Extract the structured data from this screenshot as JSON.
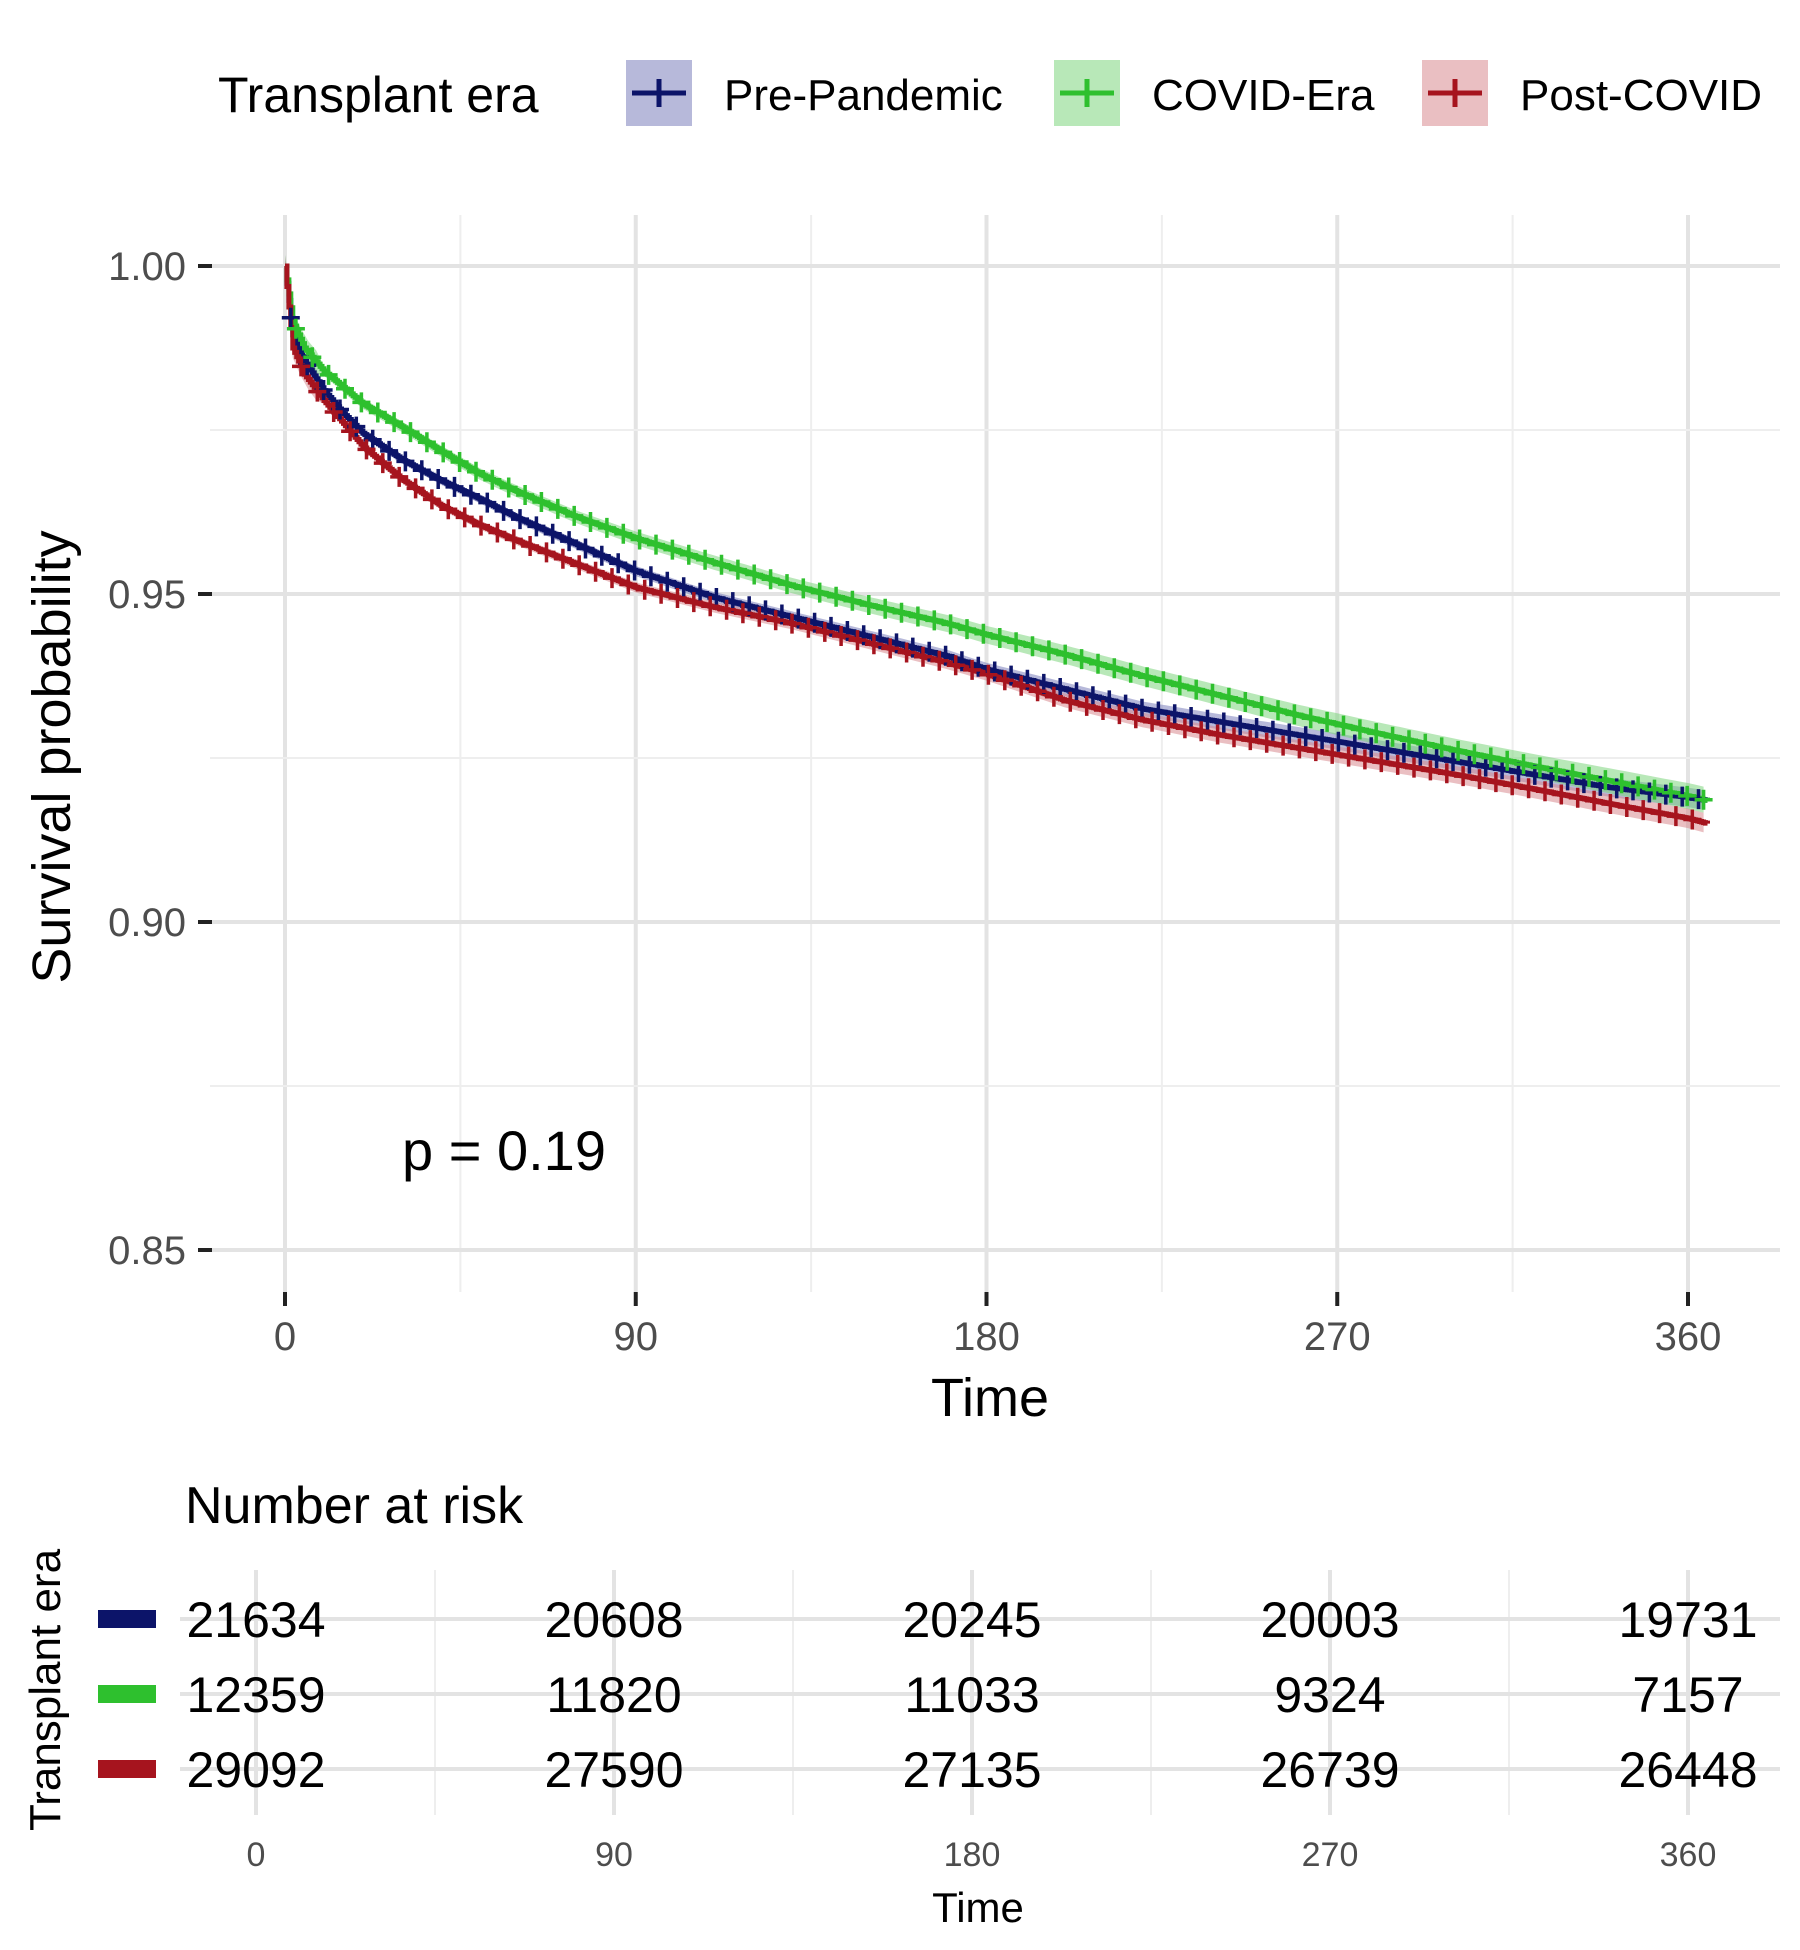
{
  "chart_data": [
    {
      "type": "line",
      "subtype": "kaplan-meier",
      "title": "",
      "xlabel": "Time",
      "ylabel": "Survival probability",
      "xlim": [
        0,
        380
      ],
      "ylim": [
        0.843,
        1.008
      ],
      "x_ticks": [
        0,
        90,
        180,
        270,
        360
      ],
      "x_tick_labels": [
        "0",
        "90",
        "180",
        "270",
        "360"
      ],
      "y_ticks": [
        0.85,
        0.9,
        0.95,
        1.0
      ],
      "y_tick_labels": [
        "0.85",
        "0.90",
        "0.95",
        "1.00"
      ],
      "grid": true,
      "legend": {
        "title": "Transplant era",
        "position": "top"
      },
      "annotation": "p = 0.19",
      "series": [
        {
          "name": "Pre-Pandemic",
          "color": "#0c1469",
          "band_color": "#7b80bb",
          "x": [
            0,
            2,
            5,
            10,
            15,
            20,
            30,
            40,
            50,
            60,
            75,
            90,
            110,
            130,
            150,
            170,
            180,
            200,
            220,
            240,
            260,
            280,
            300,
            320,
            340,
            360,
            365
          ],
          "y": [
            1.0,
            0.9895,
            0.9855,
            0.981,
            0.9775,
            0.9745,
            0.9705,
            0.9673,
            0.9645,
            0.9615,
            0.9575,
            0.9535,
            0.9495,
            0.9465,
            0.9435,
            0.9405,
            0.9385,
            0.9355,
            0.9325,
            0.9305,
            0.9285,
            0.9265,
            0.9245,
            0.9225,
            0.9205,
            0.919,
            0.9185
          ],
          "ci_halfwidth": 0.0015
        },
        {
          "name": "COVID-Era",
          "color": "#2ec02e",
          "band_color": "#7ed67e",
          "x": [
            0,
            2,
            5,
            10,
            15,
            20,
            30,
            40,
            50,
            60,
            75,
            90,
            110,
            130,
            150,
            170,
            180,
            200,
            220,
            240,
            260,
            280,
            300,
            320,
            340,
            360,
            365
          ],
          "y": [
            1.0,
            0.9915,
            0.9875,
            0.984,
            0.9815,
            0.979,
            0.9755,
            0.9718,
            0.9683,
            0.9655,
            0.9617,
            0.9585,
            0.9548,
            0.9513,
            0.9483,
            0.9455,
            0.9438,
            0.9408,
            0.9375,
            0.9345,
            0.9315,
            0.9288,
            0.9262,
            0.9238,
            0.9215,
            0.9192,
            0.9185
          ],
          "ci_halfwidth": 0.002
        },
        {
          "name": "Post-COVID",
          "color": "#a6141e",
          "band_color": "#d88a8f",
          "x": [
            0,
            2,
            5,
            10,
            15,
            20,
            30,
            40,
            50,
            60,
            75,
            90,
            110,
            130,
            150,
            170,
            180,
            200,
            220,
            240,
            260,
            280,
            300,
            320,
            340,
            360,
            365
          ],
          "y": [
            1.0,
            0.9875,
            0.9835,
            0.9795,
            0.976,
            0.9725,
            0.9675,
            0.9635,
            0.9605,
            0.958,
            0.9545,
            0.951,
            0.948,
            0.9455,
            0.9425,
            0.9395,
            0.9378,
            0.9338,
            0.9308,
            0.9285,
            0.9265,
            0.9245,
            0.9225,
            0.9203,
            0.918,
            0.9158,
            0.915
          ],
          "ci_halfwidth": 0.0015
        }
      ]
    },
    {
      "type": "table",
      "title": "Number at risk",
      "ylabel": "Transplant era",
      "xlabel": "Time",
      "columns": [
        "0",
        "90",
        "180",
        "270",
        "360"
      ],
      "rows": [
        {
          "name": "Pre-Pandemic",
          "color": "#0c1469",
          "values": [
            "21634",
            "20608",
            "20245",
            "20003",
            "19731"
          ]
        },
        {
          "name": "COVID-Era",
          "color": "#2ec02e",
          "values": [
            "12359",
            "11820",
            "11033",
            "9324",
            "7157"
          ]
        },
        {
          "name": "Post-COVID",
          "color": "#a6141e",
          "values": [
            "29092",
            "27590",
            "27135",
            "26739",
            "26448"
          ]
        }
      ]
    }
  ]
}
